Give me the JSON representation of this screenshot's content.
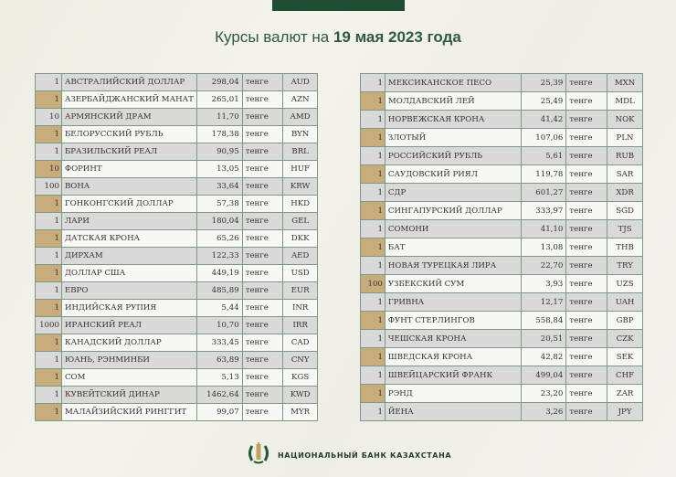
{
  "title": {
    "prefix": "Курсы валют на ",
    "date": "19 мая 2023 года"
  },
  "colors": {
    "brand_green": "#1f4d33",
    "tan": "#c9ac7c",
    "row_gray": "#d9d9d9"
  },
  "left_table": [
    {
      "qty": "1",
      "name": "АВСТРАЛИЙСКИЙ ДОЛЛАР",
      "rate": "298,04",
      "unit": "тенге",
      "code": "AUD"
    },
    {
      "qty": "1",
      "name": "АЗЕРБАЙДЖАНСКИЙ МАНАТ",
      "rate": "265,01",
      "unit": "тенге",
      "code": "AZN"
    },
    {
      "qty": "10",
      "name": "АРМЯНСКИЙ  ДРАМ",
      "rate": "11,70",
      "unit": "тенге",
      "code": "AMD"
    },
    {
      "qty": "1",
      "name": "БЕЛОРУССКИЙ РУБЛЬ",
      "rate": "178,38",
      "unit": "тенге",
      "code": "BYN"
    },
    {
      "qty": "1",
      "name": "БРАЗИЛЬСКИЙ РЕАЛ",
      "rate": "90,95",
      "unit": "тенге",
      "code": "BRL"
    },
    {
      "qty": "10",
      "name": "ФОРИНТ",
      "rate": "13,05",
      "unit": "тенге",
      "code": "HUF"
    },
    {
      "qty": "100",
      "name": "ВОНА",
      "rate": "33,64",
      "unit": "тенге",
      "code": "KRW"
    },
    {
      "qty": "1",
      "name": "ГОНКОНГСКИЙ ДОЛЛАР",
      "rate": "57,38",
      "unit": "тенге",
      "code": "HKD"
    },
    {
      "qty": "1",
      "name": "ЛАРИ",
      "rate": "180,04",
      "unit": "тенге",
      "code": "GEL"
    },
    {
      "qty": "1",
      "name": "ДАТСКАЯ КРОНА",
      "rate": "65,26",
      "unit": "тенге",
      "code": "DKK"
    },
    {
      "qty": "1",
      "name": "ДИРХАМ",
      "rate": "122,33",
      "unit": "тенге",
      "code": "AED"
    },
    {
      "qty": "1",
      "name": "ДОЛЛАР США",
      "rate": "449,19",
      "unit": "тенге",
      "code": "USD"
    },
    {
      "qty": "1",
      "name": "ЕВРО",
      "rate": "485,89",
      "unit": "тенге",
      "code": "EUR"
    },
    {
      "qty": "1",
      "name": "ИНДИЙСКАЯ РУПИЯ",
      "rate": "5,44",
      "unit": "тенге",
      "code": "INR"
    },
    {
      "qty": "1000",
      "name": "ИРАНСКИЙ РЕАЛ",
      "rate": "10,70",
      "unit": "тенге",
      "code": "IRR"
    },
    {
      "qty": "1",
      "name": "КАНАДСКИЙ ДОЛЛАР",
      "rate": "333,45",
      "unit": "тенге",
      "code": "CAD"
    },
    {
      "qty": "1",
      "name": "ЮАНЬ, РЭНМИНБИ",
      "rate": "63,89",
      "unit": "тенге",
      "code": "CNY"
    },
    {
      "qty": "1",
      "name": "СОМ",
      "rate": "5,13",
      "unit": "тенге",
      "code": "KGS"
    },
    {
      "qty": "1",
      "name": "КУВЕЙТСКИЙ ДИНАР",
      "rate": "1462,64",
      "unit": "тенге",
      "code": "KWD"
    },
    {
      "qty": "1",
      "name": "МАЛАЙЗИЙСКИЙ РИНГГИТ",
      "rate": "99,07",
      "unit": "тенге",
      "code": "MYR"
    }
  ],
  "right_table": [
    {
      "qty": "1",
      "name": "МЕКСИКАНСКОЕ ПЕСО",
      "rate": "25,39",
      "unit": "тенге",
      "code": "MXN"
    },
    {
      "qty": "1",
      "name": "МОЛДАВСКИЙ ЛЕЙ",
      "rate": "25,49",
      "unit": "тенге",
      "code": "MDL"
    },
    {
      "qty": "1",
      "name": "НОРВЕЖСКАЯ КРОНА",
      "rate": "41,42",
      "unit": "тенге",
      "code": "NOK"
    },
    {
      "qty": "1",
      "name": "ЗЛОТЫЙ",
      "rate": "107,06",
      "unit": "тенге",
      "code": "PLN"
    },
    {
      "qty": "1",
      "name": "РОССИЙСКИЙ РУБЛЬ",
      "rate": "5,61",
      "unit": "тенге",
      "code": "RUB"
    },
    {
      "qty": "1",
      "name": "САУДОВСКИЙ РИЯЛ",
      "rate": "119,78",
      "unit": "тенге",
      "code": "SAR"
    },
    {
      "qty": "1",
      "name": "СДР",
      "rate": "601,27",
      "unit": "тенге",
      "code": "XDR"
    },
    {
      "qty": "1",
      "name": "СИНГАПУРСКИЙ ДОЛЛАР",
      "rate": "333,97",
      "unit": "тенге",
      "code": "SGD"
    },
    {
      "qty": "1",
      "name": "СОМОНИ",
      "rate": "41,10",
      "unit": "тенге",
      "code": "TJS"
    },
    {
      "qty": "1",
      "name": "БАТ",
      "rate": "13,08",
      "unit": "тенге",
      "code": "THB"
    },
    {
      "qty": "1",
      "name": "НОВАЯ ТУРЕЦКАЯ ЛИРА",
      "rate": "22,70",
      "unit": "тенге",
      "code": "TRY"
    },
    {
      "qty": "100",
      "name": "УЗБЕКСКИЙ СУМ",
      "rate": "3,93",
      "unit": "тенге",
      "code": "UZS"
    },
    {
      "qty": "1",
      "name": "ГРИВНА",
      "rate": "12,17",
      "unit": "тенге",
      "code": "UAH"
    },
    {
      "qty": "1",
      "name": "ФУНТ СТЕРЛИНГОВ",
      "rate": "558,84",
      "unit": "тенге",
      "code": "GBP"
    },
    {
      "qty": "1",
      "name": "ЧЕШСКАЯ КРОНА",
      "rate": "20,51",
      "unit": "тенге",
      "code": "CZK"
    },
    {
      "qty": "1",
      "name": "ШВЕДСКАЯ КРОНА",
      "rate": "42,82",
      "unit": "тенге",
      "code": "SEK"
    },
    {
      "qty": "1",
      "name": "ШВЕЙЦАРСКИЙ ФРАНК",
      "rate": "499,04",
      "unit": "тенге",
      "code": "CHF"
    },
    {
      "qty": "1",
      "name": "РЭНД",
      "rate": "23,20",
      "unit": "тенге",
      "code": "ZAR"
    },
    {
      "qty": "1",
      "name": "ЙЕНА",
      "rate": "3,26",
      "unit": "тенге",
      "code": "JPY"
    }
  ],
  "footer": {
    "bank_name": "НАЦИОНАЛЬНЫЙ БАНК КАЗАХСТАНА",
    "logo_icon": "national-bank-emblem-icon"
  }
}
